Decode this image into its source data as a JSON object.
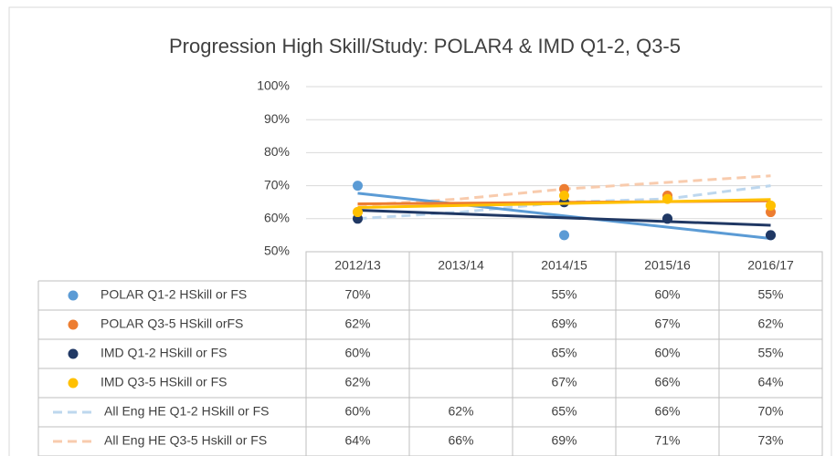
{
  "chart_data": {
    "type": "line",
    "title": "Progression High Skill/Study: POLAR4 & IMD Q1-2, Q3-5",
    "categories": [
      "2012/13",
      "2013/14",
      "2014/15",
      "2015/16",
      "2016/17"
    ],
    "ylim": [
      50,
      100
    ],
    "yticks": [
      {
        "value": 50,
        "label": "50%"
      },
      {
        "value": 60,
        "label": "60%"
      },
      {
        "value": 70,
        "label": "70%"
      },
      {
        "value": 80,
        "label": "80%"
      },
      {
        "value": 90,
        "label": "90%"
      },
      {
        "value": 100,
        "label": "100%"
      }
    ],
    "grid": true,
    "series": [
      {
        "name": "POLAR Q1-2 HSkill or FS",
        "color": "#5b9bd5",
        "style": "markers",
        "trendline": true,
        "values": [
          70,
          null,
          55,
          60,
          55
        ],
        "value_labels": [
          "70%",
          null,
          "55%",
          "60%",
          "55%"
        ]
      },
      {
        "name": "POLAR Q3-5 HSkill orFS",
        "color": "#ed7d31",
        "style": "markers",
        "trendline": true,
        "values": [
          62,
          null,
          69,
          67,
          62
        ],
        "value_labels": [
          "62%",
          null,
          "69%",
          "67%",
          "62%"
        ]
      },
      {
        "name": "IMD Q1-2 HSkill or FS",
        "color": "#203864",
        "style": "markers",
        "trendline": true,
        "values": [
          60,
          null,
          65,
          60,
          55
        ],
        "value_labels": [
          "60%",
          null,
          "65%",
          "60%",
          "55%"
        ]
      },
      {
        "name": "IMD Q3-5 HSkill or FS",
        "color": "#ffc000",
        "style": "markers",
        "trendline": true,
        "values": [
          62,
          null,
          67,
          66,
          64
        ],
        "value_labels": [
          "62%",
          null,
          "67%",
          "66%",
          "64%"
        ]
      },
      {
        "name": "All Eng HE Q1-2 HSkill or FS",
        "color": "#bdd7ee",
        "style": "dashed",
        "values": [
          60,
          62,
          65,
          66,
          70
        ],
        "value_labels": [
          "60%",
          "62%",
          "65%",
          "66%",
          "70%"
        ]
      },
      {
        "name": "All Eng HE Q3-5 Hskill or FS",
        "color": "#f8cbad",
        "style": "dashed",
        "values": [
          64,
          66,
          69,
          71,
          73
        ],
        "value_labels": [
          "64%",
          "66%",
          "69%",
          "71%",
          "73%"
        ]
      }
    ]
  }
}
